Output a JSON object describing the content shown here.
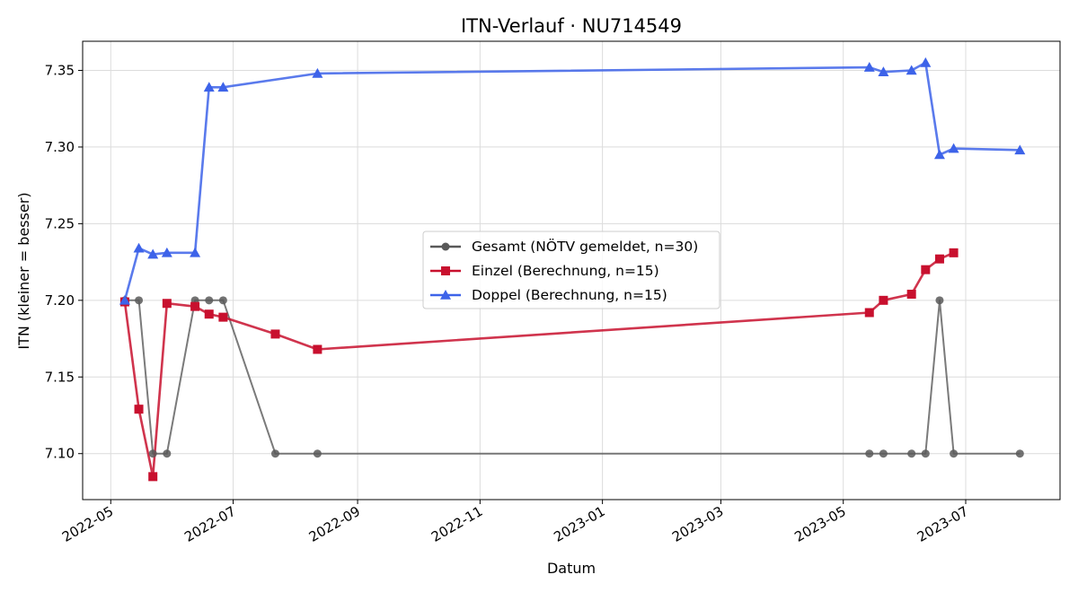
{
  "chart_data": {
    "type": "line",
    "title": "ITN-Verlauf · NU714549",
    "xlabel": "Datum",
    "ylabel": "ITN  (kleiner = besser)",
    "x_type": "date",
    "xlim": [
      "2022-04-17",
      "2023-08-17"
    ],
    "ylim": [
      7.07,
      7.369
    ],
    "x_ticks": [
      "2022-05-01",
      "2022-07-01",
      "2022-09-01",
      "2022-11-01",
      "2023-01-01",
      "2023-03-01",
      "2023-05-01",
      "2023-07-01"
    ],
    "x_tick_labels": [
      "2022-05",
      "2022-07",
      "2022-09",
      "2022-11",
      "2023-01",
      "2023-03",
      "2023-05",
      "2023-07"
    ],
    "y_ticks": [
      7.1,
      7.15,
      7.2,
      7.25,
      7.3,
      7.35
    ],
    "y_tick_labels": [
      "7.10",
      "7.15",
      "7.20",
      "7.25",
      "7.30",
      "7.35"
    ],
    "grid": true,
    "legend_position": "center",
    "series": [
      {
        "name": "Gesamt (NÖTV gemeldet, n=30)",
        "color": "#595959",
        "marker": "circle",
        "points": [
          {
            "x": "2022-05-08",
            "y": 7.2
          },
          {
            "x": "2022-05-15",
            "y": 7.2
          },
          {
            "x": "2022-05-22",
            "y": 7.1
          },
          {
            "x": "2022-05-29",
            "y": 7.1
          },
          {
            "x": "2022-06-12",
            "y": 7.2
          },
          {
            "x": "2022-06-19",
            "y": 7.2
          },
          {
            "x": "2022-06-26",
            "y": 7.2
          },
          {
            "x": "2022-07-22",
            "y": 7.1
          },
          {
            "x": "2022-08-12",
            "y": 7.1
          },
          {
            "x": "2023-05-14",
            "y": 7.1
          },
          {
            "x": "2023-05-21",
            "y": 7.1
          },
          {
            "x": "2023-06-04",
            "y": 7.1
          },
          {
            "x": "2023-06-11",
            "y": 7.1
          },
          {
            "x": "2023-06-18",
            "y": 7.2
          },
          {
            "x": "2023-06-25",
            "y": 7.1
          },
          {
            "x": "2023-07-28",
            "y": 7.1
          }
        ]
      },
      {
        "name": "Einzel (Berechnung, n=15)",
        "color": "#c8102e",
        "marker": "square",
        "points": [
          {
            "x": "2022-05-08",
            "y": 7.199
          },
          {
            "x": "2022-05-15",
            "y": 7.129
          },
          {
            "x": "2022-05-22",
            "y": 7.085
          },
          {
            "x": "2022-05-29",
            "y": 7.198
          },
          {
            "x": "2022-06-12",
            "y": 7.196
          },
          {
            "x": "2022-06-19",
            "y": 7.191
          },
          {
            "x": "2022-06-26",
            "y": 7.189
          },
          {
            "x": "2022-07-22",
            "y": 7.178
          },
          {
            "x": "2022-08-12",
            "y": 7.168
          },
          {
            "x": "2023-05-14",
            "y": 7.192
          },
          {
            "x": "2023-05-21",
            "y": 7.2
          },
          {
            "x": "2023-06-04",
            "y": 7.204
          },
          {
            "x": "2023-06-11",
            "y": 7.22
          },
          {
            "x": "2023-06-18",
            "y": 7.227
          },
          {
            "x": "2023-06-25",
            "y": 7.231
          }
        ]
      },
      {
        "name": "Doppel (Berechnung, n=15)",
        "color": "#3d63e9",
        "marker": "triangle",
        "points": [
          {
            "x": "2022-05-08",
            "y": 7.2
          },
          {
            "x": "2022-05-15",
            "y": 7.234
          },
          {
            "x": "2022-05-22",
            "y": 7.23
          },
          {
            "x": "2022-05-29",
            "y": 7.231
          },
          {
            "x": "2022-06-12",
            "y": 7.231
          },
          {
            "x": "2022-06-19",
            "y": 7.339
          },
          {
            "x": "2022-06-26",
            "y": 7.339
          },
          {
            "x": "2022-08-12",
            "y": 7.348
          },
          {
            "x": "2023-05-14",
            "y": 7.352
          },
          {
            "x": "2023-05-21",
            "y": 7.349
          },
          {
            "x": "2023-06-04",
            "y": 7.35
          },
          {
            "x": "2023-06-11",
            "y": 7.355
          },
          {
            "x": "2023-06-18",
            "y": 7.295
          },
          {
            "x": "2023-06-25",
            "y": 7.299
          },
          {
            "x": "2023-07-28",
            "y": 7.298
          }
        ]
      }
    ]
  }
}
